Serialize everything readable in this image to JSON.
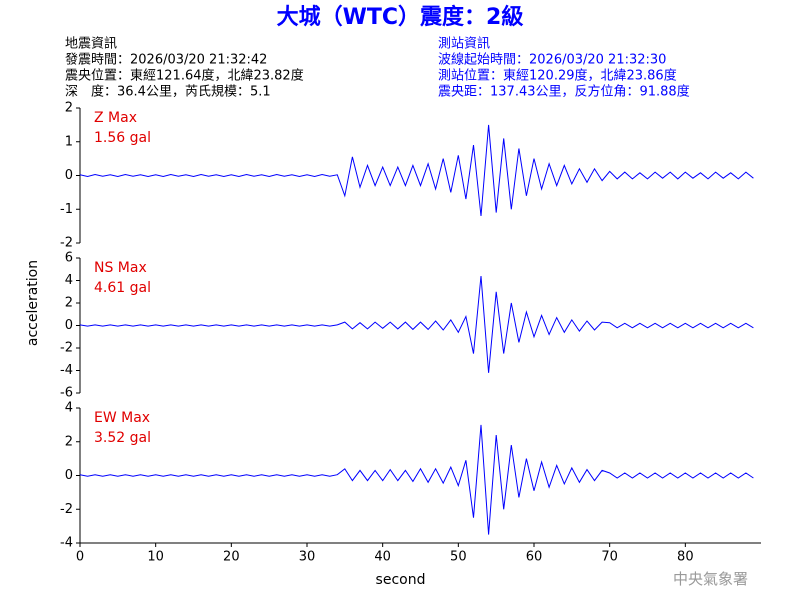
{
  "header": {
    "title": "大城（WTC）震度：2級",
    "quake": [
      "地震資訊",
      "發震時間：2026/03/20 21:32:42",
      "震央位置：東經121.64度，北緯23.82度",
      "深　度：36.4公里，芮氏規模：5.1"
    ],
    "station": [
      "測站資訊",
      "波線起始時間：2026/03/20 21:32:30",
      "測站位置：東經120.29度，北緯23.86度",
      "震央距：137.43公里，反方位角：91.88度"
    ]
  },
  "ylabel": "acceleration",
  "agency": "中央氣象署",
  "chart_data": [
    {
      "type": "line",
      "label": "Z Max",
      "peak": "1.56 gal",
      "color": "#0000ff",
      "xlim": [
        0,
        90
      ],
      "ylim": [
        -2,
        2
      ],
      "yticks": [
        -2,
        -1,
        0,
        1,
        2
      ],
      "x": [
        0,
        1,
        2,
        3,
        4,
        5,
        6,
        7,
        8,
        9,
        10,
        11,
        12,
        13,
        14,
        15,
        16,
        17,
        18,
        19,
        20,
        21,
        22,
        23,
        24,
        25,
        26,
        27,
        28,
        29,
        30,
        31,
        32,
        33,
        34,
        35,
        36,
        37,
        38,
        39,
        40,
        41,
        42,
        43,
        44,
        45,
        46,
        47,
        48,
        49,
        50,
        51,
        52,
        53,
        54,
        55,
        56,
        57,
        58,
        59,
        60,
        61,
        62,
        63,
        64,
        65,
        66,
        67,
        68,
        69,
        70,
        71,
        72,
        73,
        74,
        75,
        76,
        77,
        78,
        79,
        80,
        81,
        82,
        83,
        84,
        85,
        86,
        87,
        88,
        89
      ],
      "values": [
        0.02,
        -0.03,
        0.03,
        -0.02,
        0.02,
        -0.03,
        0.03,
        -0.02,
        0.02,
        -0.03,
        0.02,
        -0.03,
        0.03,
        -0.02,
        0.02,
        -0.03,
        0.03,
        -0.02,
        0.02,
        -0.03,
        0.02,
        -0.03,
        0.03,
        -0.02,
        0.02,
        -0.03,
        0.03,
        -0.02,
        0.02,
        -0.03,
        0.02,
        -0.03,
        0.03,
        -0.02,
        0.02,
        -0.6,
        0.55,
        -0.35,
        0.3,
        -0.3,
        0.25,
        -0.3,
        0.25,
        -0.3,
        0.3,
        -0.3,
        0.35,
        -0.4,
        0.5,
        -0.5,
        0.6,
        -0.7,
        0.9,
        -1.2,
        1.5,
        -1.1,
        1.1,
        -1.0,
        0.8,
        -0.6,
        0.5,
        -0.4,
        0.35,
        -0.3,
        0.3,
        -0.25,
        0.2,
        -0.2,
        0.2,
        -0.15,
        0.12,
        -0.1,
        0.1,
        -0.1,
        0.08,
        -0.1,
        0.1,
        -0.08,
        0.1,
        -0.1,
        0.1,
        -0.08,
        0.08,
        -0.1,
        0.1,
        -0.08,
        0.08,
        -0.1,
        0.1,
        -0.08
      ]
    },
    {
      "type": "line",
      "label": "NS Max",
      "peak": "4.61 gal",
      "color": "#0000ff",
      "xlim": [
        0,
        90
      ],
      "ylim": [
        -6,
        6
      ],
      "yticks": [
        -6,
        -4,
        -2,
        0,
        2,
        4,
        6
      ],
      "x": [
        0,
        1,
        2,
        3,
        4,
        5,
        6,
        7,
        8,
        9,
        10,
        11,
        12,
        13,
        14,
        15,
        16,
        17,
        18,
        19,
        20,
        21,
        22,
        23,
        24,
        25,
        26,
        27,
        28,
        29,
        30,
        31,
        32,
        33,
        34,
        35,
        36,
        37,
        38,
        39,
        40,
        41,
        42,
        43,
        44,
        45,
        46,
        47,
        48,
        49,
        50,
        51,
        52,
        53,
        54,
        55,
        56,
        57,
        58,
        59,
        60,
        61,
        62,
        63,
        64,
        65,
        66,
        67,
        68,
        69,
        70,
        71,
        72,
        73,
        74,
        75,
        76,
        77,
        78,
        79,
        80,
        81,
        82,
        83,
        84,
        85,
        86,
        87,
        88,
        89
      ],
      "values": [
        0.05,
        -0.05,
        0.05,
        -0.05,
        0.05,
        -0.05,
        0.05,
        -0.05,
        0.05,
        -0.05,
        0.05,
        -0.05,
        0.05,
        -0.05,
        0.05,
        -0.05,
        0.05,
        -0.05,
        0.05,
        -0.05,
        0.05,
        -0.05,
        0.05,
        -0.05,
        0.05,
        -0.05,
        0.05,
        -0.05,
        0.05,
        -0.05,
        0.05,
        -0.05,
        0.05,
        -0.05,
        0.05,
        0.3,
        -0.3,
        0.25,
        -0.3,
        0.3,
        -0.25,
        0.3,
        -0.3,
        0.3,
        -0.35,
        0.3,
        -0.35,
        0.4,
        -0.4,
        0.5,
        -0.6,
        0.8,
        -2.5,
        4.4,
        -4.2,
        3.0,
        -2.5,
        2.0,
        -1.5,
        1.2,
        -1.0,
        0.9,
        -0.8,
        0.7,
        -0.6,
        0.5,
        -0.5,
        0.4,
        -0.4,
        0.3,
        0.25,
        -0.2,
        0.2,
        -0.2,
        0.2,
        -0.2,
        0.2,
        -0.2,
        0.2,
        -0.2,
        0.2,
        -0.2,
        0.2,
        -0.2,
        0.2,
        -0.2,
        0.2,
        -0.2,
        0.2,
        -0.2
      ]
    },
    {
      "type": "line",
      "label": "EW Max",
      "peak": "3.52 gal",
      "color": "#0000ff",
      "xlim": [
        0,
        90
      ],
      "ylim": [
        -4,
        4
      ],
      "yticks": [
        -4,
        -2,
        0,
        2,
        4
      ],
      "xticks": [
        0,
        10,
        20,
        30,
        40,
        50,
        60,
        70,
        80
      ],
      "xlabel": "second",
      "x": [
        0,
        1,
        2,
        3,
        4,
        5,
        6,
        7,
        8,
        9,
        10,
        11,
        12,
        13,
        14,
        15,
        16,
        17,
        18,
        19,
        20,
        21,
        22,
        23,
        24,
        25,
        26,
        27,
        28,
        29,
        30,
        31,
        32,
        33,
        34,
        35,
        36,
        37,
        38,
        39,
        40,
        41,
        42,
        43,
        44,
        45,
        46,
        47,
        48,
        49,
        50,
        51,
        52,
        53,
        54,
        55,
        56,
        57,
        58,
        59,
        60,
        61,
        62,
        63,
        64,
        65,
        66,
        67,
        68,
        69,
        70,
        71,
        72,
        73,
        74,
        75,
        76,
        77,
        78,
        79,
        80,
        81,
        82,
        83,
        84,
        85,
        86,
        87,
        88,
        89
      ],
      "values": [
        0.05,
        -0.05,
        0.05,
        -0.05,
        0.05,
        -0.05,
        0.05,
        -0.05,
        0.05,
        -0.05,
        0.05,
        -0.05,
        0.05,
        -0.05,
        0.05,
        -0.05,
        0.05,
        -0.05,
        0.05,
        -0.05,
        0.05,
        -0.05,
        0.05,
        -0.05,
        0.05,
        -0.05,
        0.05,
        -0.05,
        0.05,
        -0.05,
        0.05,
        -0.05,
        0.05,
        -0.05,
        0.05,
        0.4,
        -0.3,
        0.3,
        -0.3,
        0.3,
        -0.3,
        0.35,
        -0.3,
        0.3,
        -0.35,
        0.4,
        -0.4,
        0.4,
        -0.45,
        0.5,
        -0.6,
        0.9,
        -2.5,
        3.0,
        -3.5,
        2.4,
        -2.0,
        1.8,
        -1.3,
        1.0,
        -0.9,
        0.8,
        -0.7,
        0.6,
        -0.5,
        0.45,
        -0.4,
        0.35,
        -0.3,
        0.3,
        0.15,
        -0.15,
        0.15,
        -0.15,
        0.15,
        -0.15,
        0.15,
        -0.15,
        0.15,
        -0.15,
        0.15,
        -0.15,
        0.15,
        -0.15,
        0.15,
        -0.15,
        0.15,
        -0.15,
        0.15,
        -0.15
      ]
    }
  ]
}
